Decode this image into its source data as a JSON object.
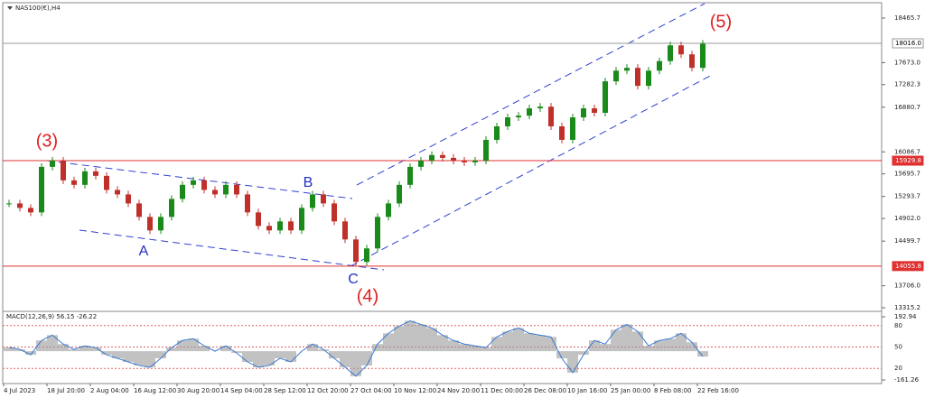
{
  "chart_data": {
    "type": "candlestick",
    "title": "NAS100(€),H4",
    "categories": [
      "4 Jul 2023",
      null,
      null,
      null,
      "18 Jul 20:00",
      null,
      null,
      null,
      "2 Aug 04:00",
      null,
      null,
      null,
      "16 Aug 12:00",
      null,
      null,
      null,
      "30 Aug 20:00",
      null,
      null,
      null,
      "14 Sep 04:00",
      null,
      null,
      null,
      "28 Sep 12:00",
      null,
      null,
      null,
      "12 Oct 20:00",
      null,
      null,
      null,
      "27 Oct 04:00",
      null,
      null,
      null,
      "10 Nov 12:00",
      null,
      null,
      null,
      "24 Nov 20:00",
      null,
      null,
      null,
      "11 Dec 00:00",
      null,
      null,
      null,
      "26 Dec 08:00",
      null,
      null,
      null,
      "10 Jan 16:00",
      null,
      null,
      null,
      "25 Jan 00:00",
      null,
      null,
      null,
      "8 Feb 08:00",
      null,
      null,
      null,
      "22 Feb 16:00"
    ],
    "values": [
      15170,
      15090,
      15010,
      15820,
      15930,
      15580,
      15500,
      15740,
      15660,
      15410,
      15330,
      15170,
      14930,
      14690,
      14930,
      15250,
      15500,
      15580,
      15410,
      15330,
      15500,
      15330,
      15010,
      14770,
      14690,
      14850,
      14690,
      15090,
      15330,
      15170,
      14850,
      14530,
      14130,
      14370,
      14930,
      15170,
      15500,
      15820,
      15930,
      16030,
      15980,
      15930,
      15900,
      15930,
      16300,
      16540,
      16700,
      16730,
      16860,
      16890,
      16540,
      16300,
      16700,
      16860,
      16780,
      17340,
      17530,
      17580,
      17260,
      17530,
      17700,
      17980,
      17820,
      17580,
      18010
    ],
    "up_color": "#1a8a1a",
    "down_color": "#c0302a",
    "ylim": [
      13235,
      18722
    ],
    "yticks": [
      18465.7,
      {
        "value": 17673,
        "label": "17673.0"
      },
      17282.3,
      16880.7,
      16086.7,
      15695.7,
      15293.7,
      {
        "value": 14902,
        "label": "14902.0"
      },
      14499.7,
      {
        "value": 13706,
        "label": "13706.0"
      },
      13315.2
    ],
    "price_levels": [
      {
        "value": 18016,
        "label": "18016.0",
        "color": "#999999"
      },
      {
        "value": 15929.8,
        "label": "15929.8",
        "color": "#e03030"
      },
      {
        "value": 14055.8,
        "label": "14055.8",
        "color": "#e03030"
      }
    ],
    "annotations": [
      {
        "text": "(3)",
        "color": "#e02020"
      },
      {
        "text": "A",
        "color": "#2030c0"
      },
      {
        "text": "B",
        "color": "#2030c0"
      },
      {
        "text": "C",
        "color": "#2030c0"
      },
      {
        "text": "(4)",
        "color": "#e02020"
      },
      {
        "text": "(5)",
        "color": "#e02020"
      }
    ],
    "macd": {
      "label": "MACD(12,26,9) 56.15 -26.22",
      "color": "#9a9a9a",
      "line_color": "#3a7ad0",
      "values": [
        20,
        10,
        -20,
        60,
        90,
        40,
        10,
        30,
        20,
        -20,
        -40,
        -60,
        -80,
        -90,
        -40,
        20,
        60,
        70,
        30,
        0,
        30,
        -10,
        -60,
        -90,
        -80,
        -40,
        -60,
        0,
        40,
        10,
        -40,
        -90,
        -140,
        -80,
        40,
        100,
        140,
        170,
        150,
        130,
        90,
        60,
        40,
        30,
        20,
        80,
        110,
        130,
        100,
        90,
        80,
        -40,
        -120,
        -20,
        60,
        40,
        120,
        150,
        110,
        30,
        60,
        70,
        100,
        50,
        -30
      ],
      "ylim": [
        -161.26,
        192.94
      ],
      "yticks": [
        192.94,
        -161.26
      ],
      "y2lim": [
        0,
        100
      ],
      "y2ticks": [
        80,
        50,
        20
      ]
    }
  }
}
